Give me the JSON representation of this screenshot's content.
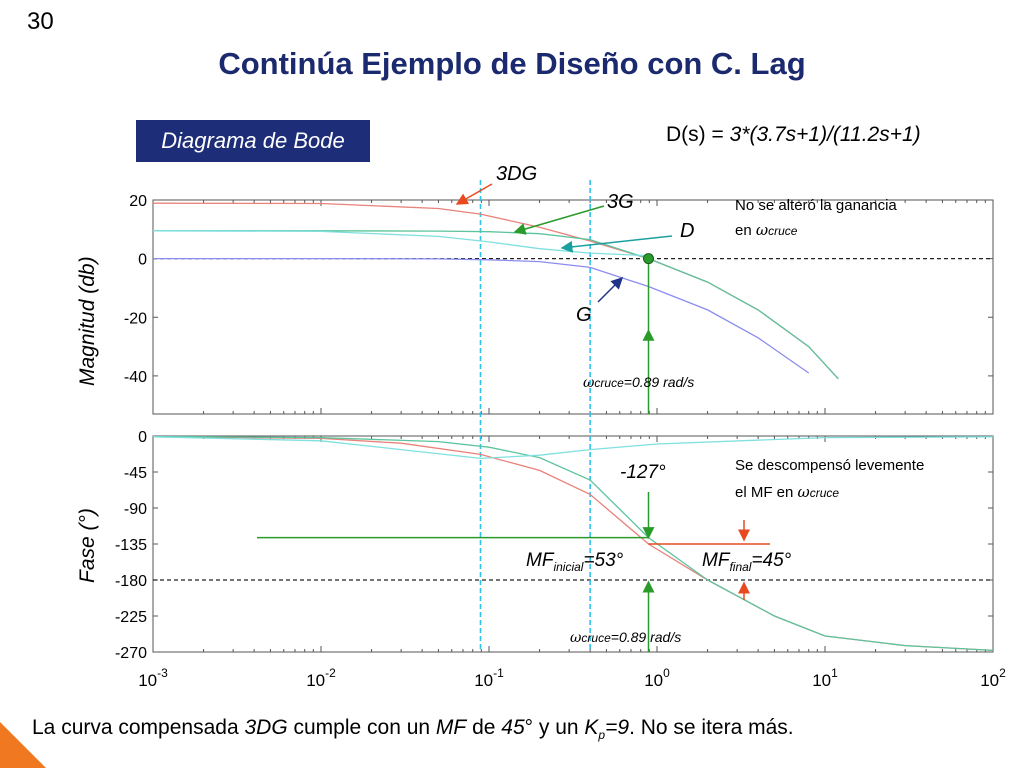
{
  "slide_number": "30",
  "title": "Continúa Ejemplo de Diseño con C. Lag",
  "plot_label": "Diagrama de Bode",
  "transfer_function": {
    "lhs": "D(s) ",
    "eq": "= ",
    "rhs": "3*(3.7s+1)/(11.2s+1)"
  },
  "annotations": {
    "gain_note_line1": "No se alteró la ganancia",
    "gain_note_line2": "en ",
    "omega": "ω",
    "cruce": "cruce",
    "phase_note_line1": "Se descompensó levemente",
    "phase_note_line2": "el MF en ",
    "omega_cruce_value": "=0.89 rad/s",
    "phase_at_cross": "-127°",
    "mf_prefix": "MF",
    "mf_initial_sub": "inicial",
    "mf_initial_val": "=53°",
    "mf_final_sub": "final",
    "mf_final_val": "=45°"
  },
  "curve_labels": {
    "dg3": "3DG",
    "g3": "3G",
    "d": "D",
    "g": "G"
  },
  "caption": {
    "p1": "La curva compensada ",
    "p2": "3DG",
    "p3": " cumple con un ",
    "p4": "MF",
    "p5": " de ",
    "p6": "45",
    "p7": "° y un ",
    "p8": "K",
    "p9": "p",
    "p10": "=9",
    "p11": ". No se itera más."
  },
  "colors": {
    "dg3": "#e8827a",
    "g3": "#5cc49c",
    "d": "#7fe0e0",
    "g": "#8c8cf0",
    "marker": "#2a9a2a",
    "arrow_red": "#e84a20",
    "dashed_blue": "#30c0e8"
  },
  "chart_data": [
    {
      "type": "line",
      "title": "",
      "xlabel": "",
      "ylabel": "Magnitud (db)",
      "xscale": "log",
      "xlim": [
        0.001,
        100
      ],
      "ylim": [
        -53,
        20
      ],
      "xticks": [
        "10^-3",
        "10^-2",
        "10^-1",
        "10^0",
        "10^1",
        "10^2"
      ],
      "yticks": [
        20,
        0,
        -20,
        -40
      ],
      "grid": false,
      "series": [
        {
          "name": "3DG",
          "x": [
            0.001,
            0.01,
            0.05,
            0.089,
            0.2,
            0.4,
            0.89,
            2,
            4,
            8,
            12
          ],
          "y": [
            18.9,
            18.8,
            17.1,
            15.2,
            10.7,
            6.0,
            0.0,
            -8.0,
            -17.5,
            -30,
            -41
          ]
        },
        {
          "name": "3G",
          "x": [
            0.001,
            0.01,
            0.05,
            0.1,
            0.2,
            0.4,
            0.89,
            2,
            4,
            8,
            12
          ],
          "y": [
            9.5,
            9.5,
            9.4,
            9.2,
            8.5,
            6.5,
            0.0,
            -8.0,
            -17.5,
            -30,
            -41
          ]
        },
        {
          "name": "D",
          "x": [
            0.001,
            0.01,
            0.05,
            0.1,
            0.2,
            0.4,
            0.89
          ],
          "y": [
            9.5,
            9.3,
            7.6,
            5.7,
            3.4,
            1.9,
            1.0
          ]
        },
        {
          "name": "G",
          "x": [
            0.001,
            0.01,
            0.05,
            0.1,
            0.2,
            0.4,
            0.89,
            2,
            4,
            8
          ],
          "y": [
            0.0,
            0.0,
            -0.1,
            -0.4,
            -1.0,
            -3.0,
            -9.5,
            -17.5,
            -27.0,
            -39.0
          ]
        }
      ],
      "markers": {
        "omega_cruce": 0.89,
        "dashed_v": [
          0.089,
          0.4
        ],
        "dashed_h": 0
      }
    },
    {
      "type": "line",
      "title": "",
      "xlabel": "",
      "ylabel": "Fase (°)",
      "xscale": "log",
      "xlim": [
        0.001,
        100
      ],
      "ylim": [
        -270,
        0
      ],
      "xticks": [
        "10^-3",
        "10^-2",
        "10^-1",
        "10^0",
        "10^1",
        "10^2"
      ],
      "yticks": [
        0,
        -45,
        -90,
        -135,
        -180,
        -225,
        -270
      ],
      "grid": false,
      "series": [
        {
          "name": "3DG",
          "x": [
            0.001,
            0.01,
            0.03,
            0.089,
            0.2,
            0.4,
            0.89,
            2,
            5,
            10,
            30,
            100
          ],
          "y": [
            -1,
            -3,
            -9,
            -23,
            -43,
            -73,
            -135,
            -180,
            -225,
            -250,
            -262,
            -268
          ]
        },
        {
          "name": "3G",
          "x": [
            0.001,
            0.01,
            0.05,
            0.1,
            0.2,
            0.4,
            0.89,
            2,
            5,
            10,
            30,
            100
          ],
          "y": [
            -0.5,
            -2,
            -7,
            -14,
            -27,
            -55,
            -127,
            -180,
            -225,
            -250,
            -262,
            -268
          ]
        },
        {
          "name": "D",
          "x": [
            0.001,
            0.01,
            0.03,
            0.089,
            0.2,
            0.4,
            1,
            10,
            100
          ],
          "y": [
            -1,
            -6,
            -17,
            -28,
            -24,
            -17,
            -10,
            -2,
            -1
          ]
        }
      ],
      "markers": {
        "omega_cruce": 0.89,
        "dashed_v": [
          0.089,
          0.4
        ],
        "dashed_h": -180,
        "mf_initial_level": -127,
        "mf_final_level": -135
      }
    }
  ]
}
